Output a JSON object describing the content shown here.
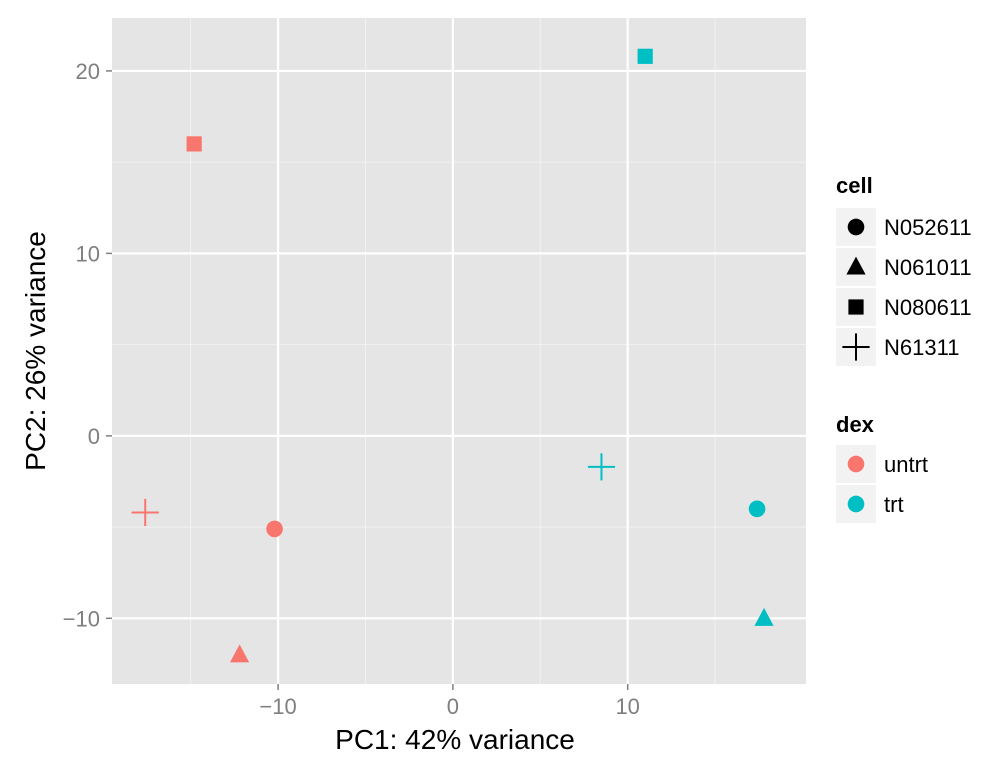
{
  "chart_data": {
    "type": "scatter",
    "xlabel": "PC1: 42% variance",
    "ylabel": "PC2: 26% variance",
    "xlim": [
      -19.5,
      20.2
    ],
    "ylim": [
      -13.6,
      22.9
    ],
    "x_ticks": [
      -10,
      0,
      10
    ],
    "y_ticks": [
      -10,
      0,
      10,
      20
    ],
    "x_tick_labels": [
      "−10",
      "0",
      "10"
    ],
    "y_tick_labels": [
      "−10",
      "0",
      "10",
      "20"
    ],
    "grid": true,
    "legend_position": "right",
    "points": [
      {
        "x": -14.8,
        "y": 16.0,
        "cell": "N080611",
        "dex": "untrt"
      },
      {
        "x": -17.6,
        "y": -4.2,
        "cell": "N61311",
        "dex": "untrt"
      },
      {
        "x": -10.2,
        "y": -5.1,
        "cell": "N052611",
        "dex": "untrt"
      },
      {
        "x": -12.2,
        "y": -12.0,
        "cell": "N061011",
        "dex": "untrt"
      },
      {
        "x": 11.0,
        "y": 20.8,
        "cell": "N080611",
        "dex": "trt"
      },
      {
        "x": 8.5,
        "y": -1.7,
        "cell": "N61311",
        "dex": "trt"
      },
      {
        "x": 17.4,
        "y": -4.0,
        "cell": "N052611",
        "dex": "trt"
      },
      {
        "x": 17.8,
        "y": -10.0,
        "cell": "N061011",
        "dex": "trt"
      }
    ],
    "legends": {
      "cell": {
        "title": "cell",
        "items": [
          {
            "label": "N052611",
            "shape": "circle"
          },
          {
            "label": "N061011",
            "shape": "triangle"
          },
          {
            "label": "N080611",
            "shape": "square"
          },
          {
            "label": "N61311",
            "shape": "plus"
          }
        ]
      },
      "dex": {
        "title": "dex",
        "items": [
          {
            "label": "untrt",
            "color": "#F8766D"
          },
          {
            "label": "trt",
            "color": "#00BFC4"
          }
        ]
      }
    },
    "colors": {
      "panel_background": "#E5E5E5",
      "grid_major": "#FFFFFF",
      "grid_minor": "#F2F2F2",
      "legend_key_background": "#F2F2F2",
      "legend_shape": "#000000"
    }
  }
}
